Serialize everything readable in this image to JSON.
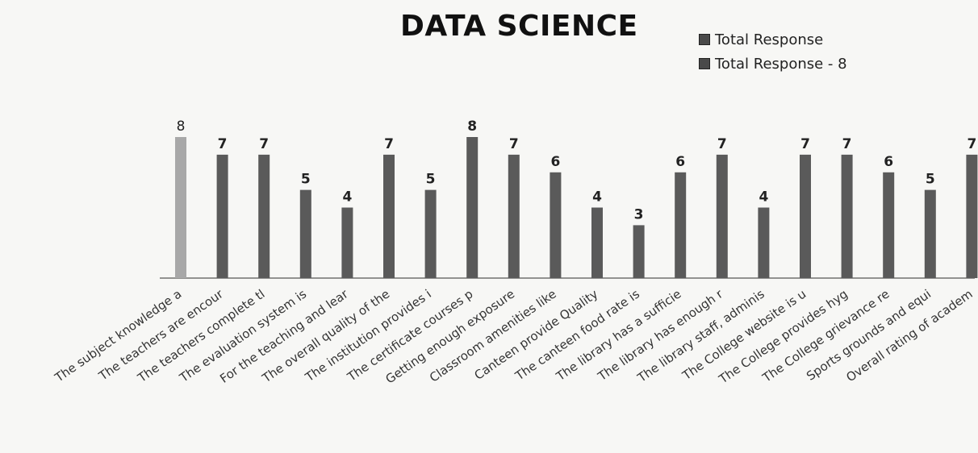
{
  "chart_data": {
    "type": "bar",
    "title": "DATA SCIENCE",
    "xlabel": "",
    "ylabel": "",
    "ylim": [
      0,
      8
    ],
    "grid": false,
    "legend_position": "top-right",
    "categories": [
      "The subject knowledge a",
      "The teachers are encour",
      "The teachers complete tl",
      "The evaluation system is",
      "For the teaching and lear",
      "The overall quality of the",
      "The institution provides i",
      "The certificate courses p",
      "Getting enough exposure",
      "Classroom amenities like",
      "Canteen provide Quality",
      "The canteen food rate is",
      "The library has a sufficie",
      "The library has enough r",
      "The library staff, adminis",
      "The College website is u",
      "The College provides hyg",
      "The College grievance re",
      "Sports grounds and equi",
      "Overall rating of academ"
    ],
    "series": [
      {
        "name": "Total Response",
        "values": [
          8,
          7,
          7,
          5,
          4,
          7,
          5,
          8,
          7,
          6,
          4,
          3,
          6,
          7,
          4,
          7,
          7,
          6,
          5,
          7
        ],
        "data_labels": [
          "8",
          "7",
          "7",
          "5",
          "4",
          "7",
          "5",
          "8",
          "7",
          "6",
          "4",
          "3",
          "6",
          "7",
          "4",
          "7",
          "7",
          "6",
          "5",
          "7"
        ]
      }
    ],
    "legend": [
      "Total Response",
      "Total Response - 8"
    ],
    "colors": {
      "bar": "#5a5a5a",
      "bar_first": "#a8a8a8",
      "legend_swatch": "#4a4a4a",
      "axis": "#555555",
      "text": "#222222"
    }
  }
}
